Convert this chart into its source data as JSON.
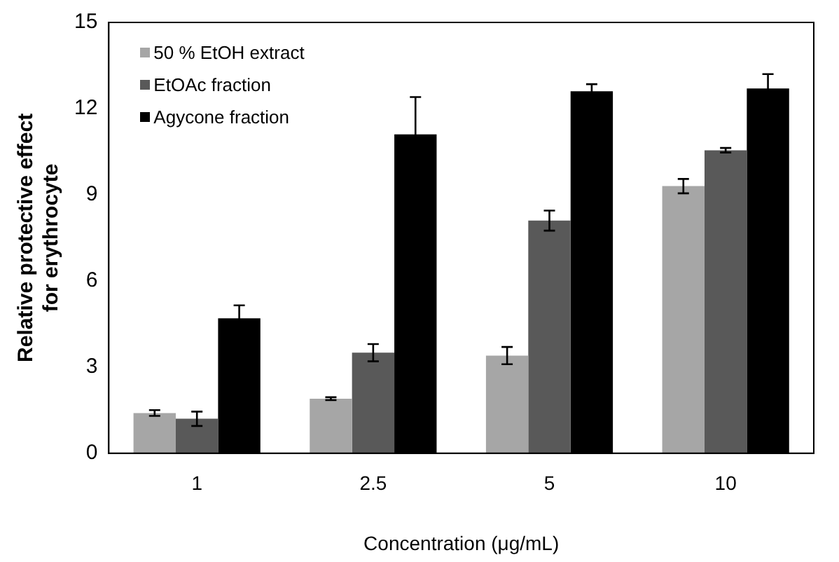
{
  "chart_data": {
    "type": "bar",
    "xlabel": "Concentration (μg/mL)",
    "ylabel": "Relative protective effect for erythrocyte",
    "categories": [
      "1",
      "2.5",
      "5",
      "10"
    ],
    "series": [
      {
        "name": "50 % EtOH extract",
        "color": "#a6a6a6",
        "values": [
          1.4,
          1.9,
          3.4,
          9.3
        ],
        "errors": [
          0.1,
          0.05,
          0.3,
          0.25
        ]
      },
      {
        "name": "EtOAc fraction",
        "color": "#595959",
        "values": [
          1.2,
          3.5,
          8.1,
          10.55
        ],
        "errors": [
          0.25,
          0.3,
          0.35,
          0.08
        ]
      },
      {
        "name": "Agycone fraction",
        "color": "#000000",
        "values": [
          4.7,
          11.1,
          12.6,
          12.7
        ],
        "errors": [
          0.45,
          1.3,
          0.25,
          0.5
        ]
      }
    ],
    "ylim": [
      0,
      15
    ],
    "yticks": [
      0,
      3,
      6,
      9,
      12,
      15
    ],
    "grid": false,
    "legend": "top left"
  }
}
